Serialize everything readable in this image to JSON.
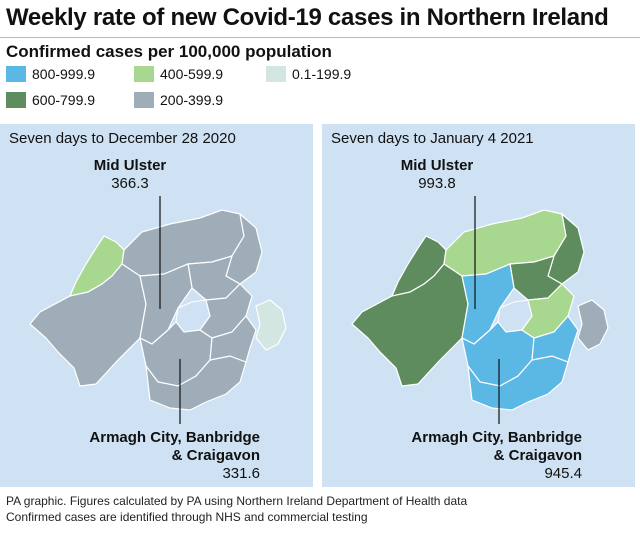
{
  "title": "Weekly rate of new Covid-19 cases in Northern Ireland",
  "legend": {
    "heading": "Confirmed cases per 100,000 population",
    "items": [
      {
        "label": "800-999.9",
        "color": "#5bb8e4"
      },
      {
        "label": "600-799.9",
        "color": "#5e8c5e"
      },
      {
        "label": "400-599.9",
        "color": "#a8d890"
      },
      {
        "label": "200-399.9",
        "color": "#9fadb8"
      },
      {
        "label": "0.1-199.9",
        "color": "#d4e6e2"
      }
    ]
  },
  "maps": [
    {
      "period": "Seven days to December 28 2020",
      "callouts": [
        {
          "name": "Mid Ulster",
          "value": "366.3"
        },
        {
          "name_line1": "Armagh City, Banbridge",
          "name_line2": "& Craigavon",
          "value": "331.6"
        }
      ]
    },
    {
      "period": "Seven days to January 4 2021",
      "callouts": [
        {
          "name": "Mid Ulster",
          "value": "993.8"
        },
        {
          "name_line1": "Armagh City, Banbridge",
          "name_line2": "& Craigavon",
          "value": "945.4"
        }
      ]
    }
  ],
  "footer": {
    "line1": "PA graphic. Figures calculated by PA using Northern Ireland Department of Health data",
    "line2": "Confirmed cases are identified through NHS and commercial testing"
  }
}
